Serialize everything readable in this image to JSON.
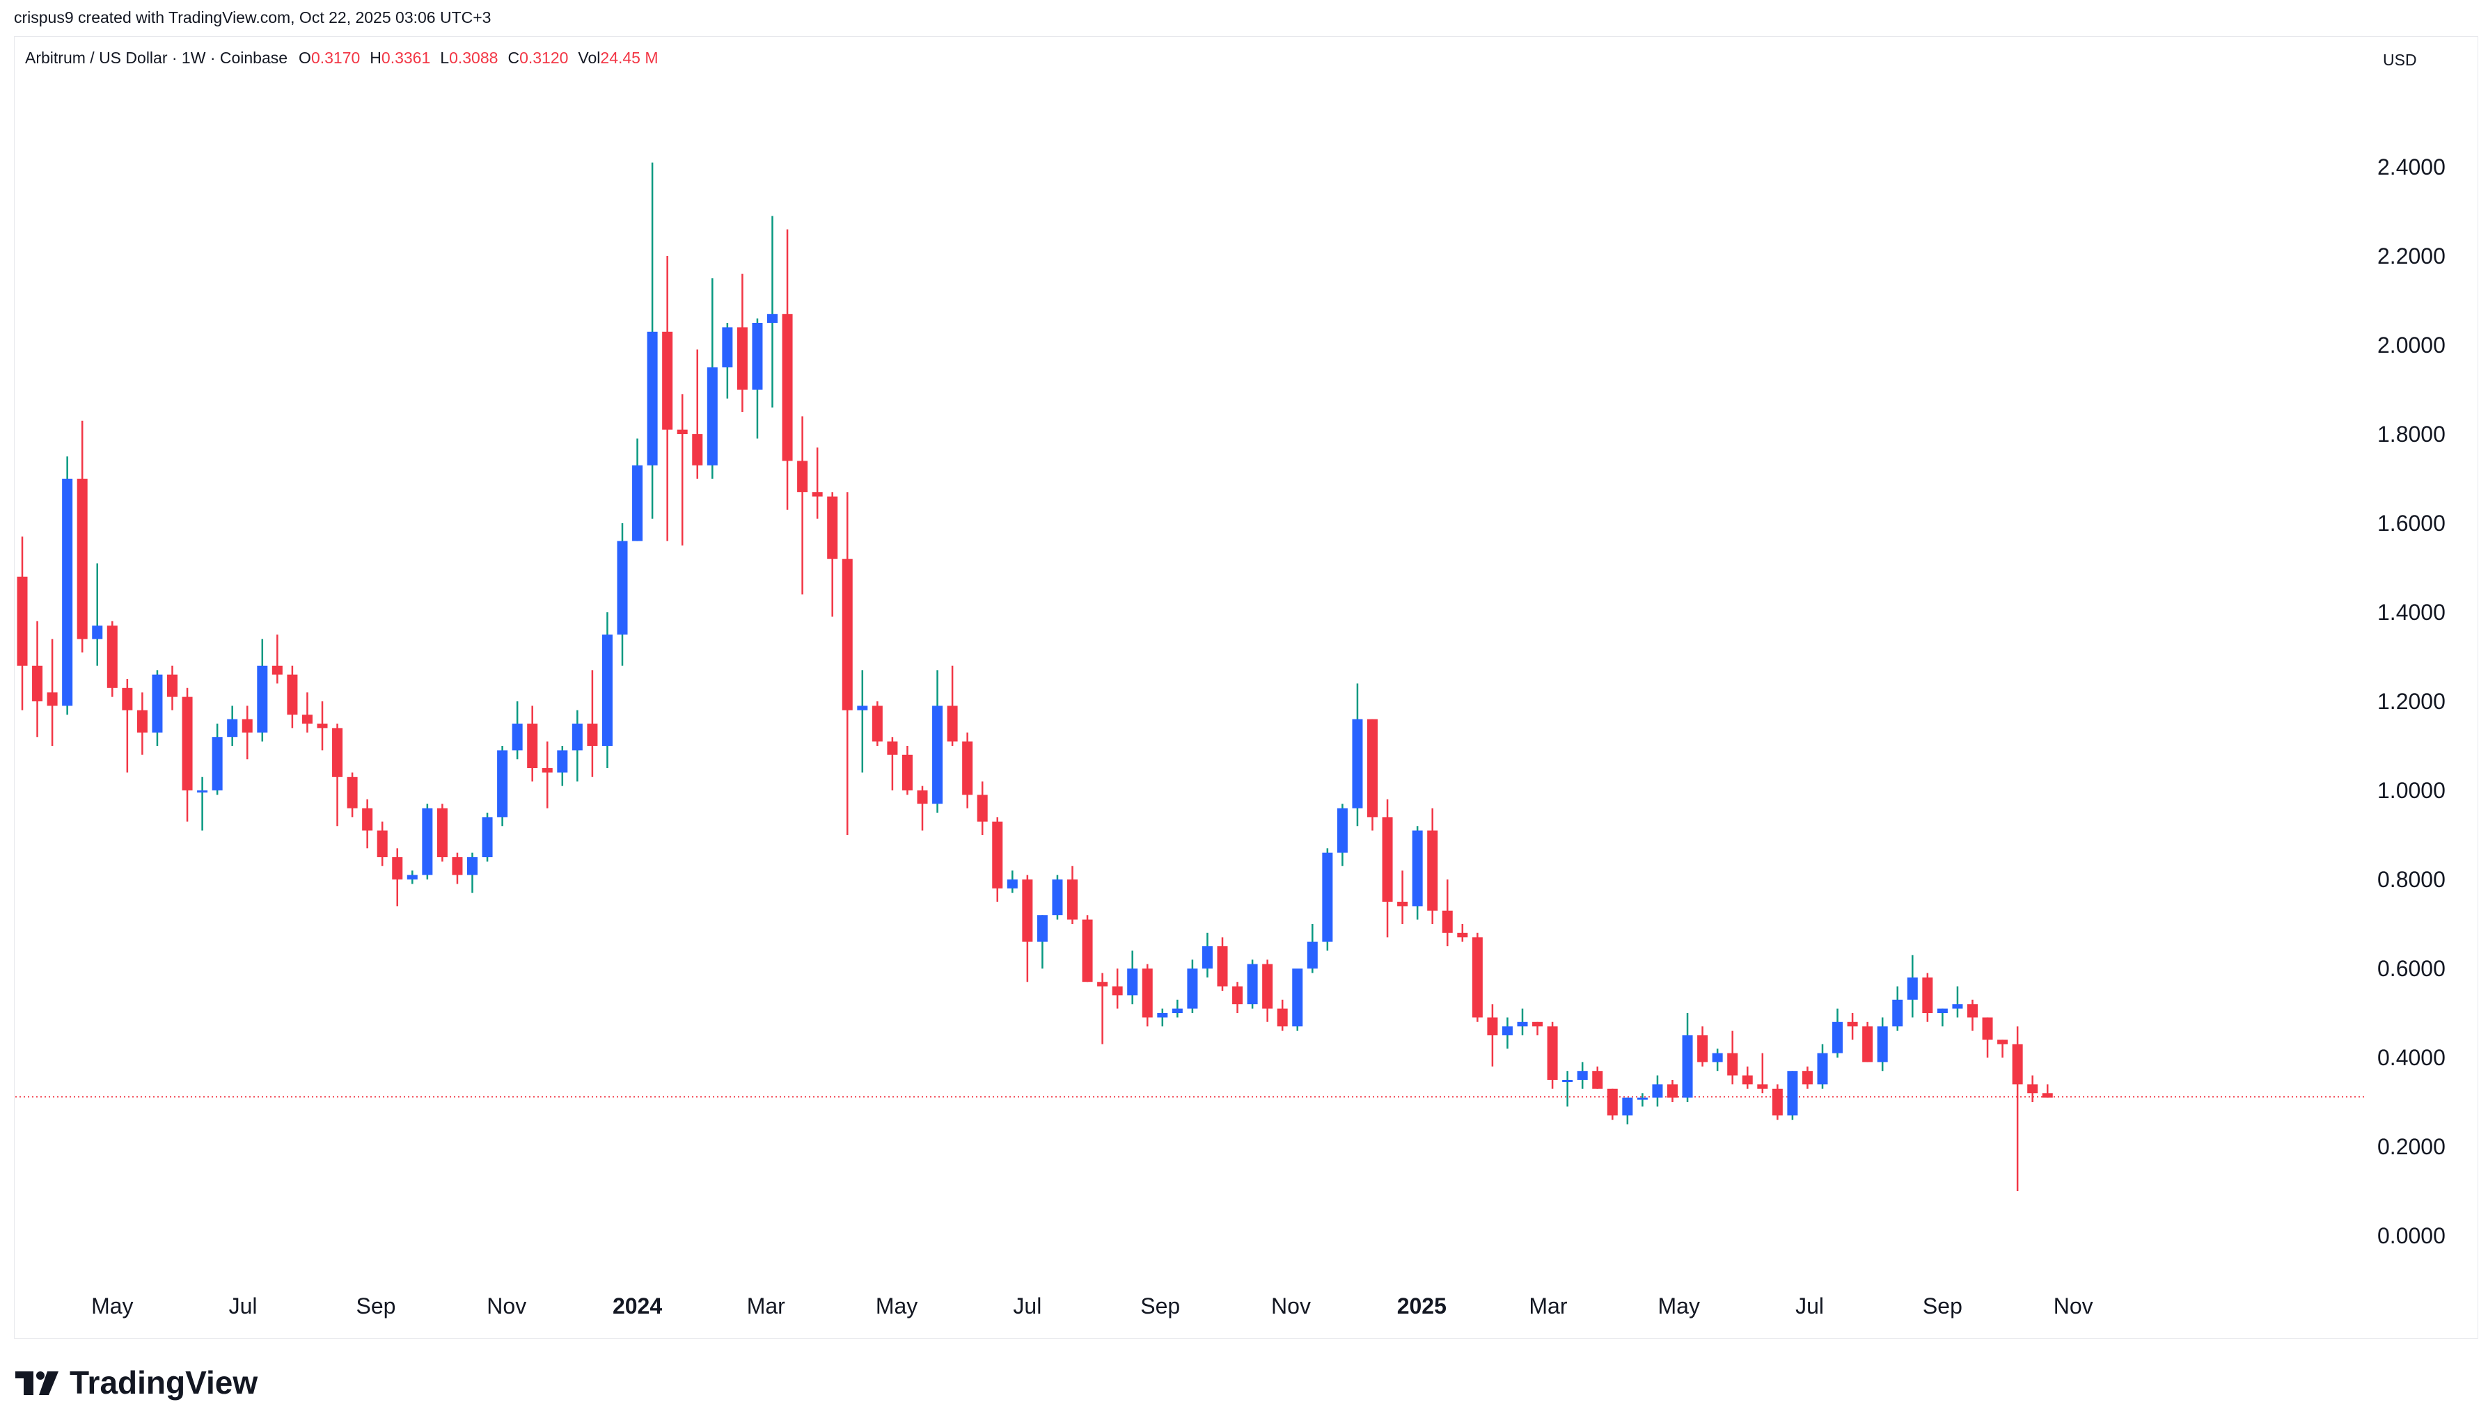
{
  "header": "crispus9 created with TradingView.com, Oct 22, 2025 03:06 UTC+3",
  "legend": {
    "symbol": "Arbitrum / US Dollar · 1W · Coinbase",
    "o_label": "O",
    "o_value": "0.3170",
    "h_label": "H",
    "h_value": "0.3361",
    "l_label": "L",
    "l_value": "0.3088",
    "c_label": "C",
    "c_value": "0.3120",
    "vol_label": "Vol",
    "vol_value": "24.45 M"
  },
  "currency_button": "USD",
  "brand": "TradingView",
  "colors": {
    "up": "#2962ff",
    "down": "#f23645",
    "up_wick": "#089981",
    "price_line": "#f23645"
  },
  "chart_data": {
    "type": "candlestick",
    "title": "Arbitrum / US Dollar · 1W · Coinbase",
    "ylim": [
      -0.1,
      2.55
    ],
    "y_ticks": [
      "0.0000",
      "0.2000",
      "0.4000",
      "0.6000",
      "0.8000",
      "1.0000",
      "1.2000",
      "1.4000",
      "1.6000",
      "1.8000",
      "2.0000",
      "2.2000",
      "2.4000"
    ],
    "x_ticks": [
      {
        "label": "May",
        "date": "2023-05-01"
      },
      {
        "label": "Jul",
        "date": "2023-07-01"
      },
      {
        "label": "Sep",
        "date": "2023-09-01"
      },
      {
        "label": "Nov",
        "date": "2023-11-01"
      },
      {
        "label": "2024",
        "date": "2024-01-01",
        "bold": true
      },
      {
        "label": "Mar",
        "date": "2024-03-01"
      },
      {
        "label": "May",
        "date": "2024-05-01"
      },
      {
        "label": "Jul",
        "date": "2024-07-01"
      },
      {
        "label": "Sep",
        "date": "2024-09-01"
      },
      {
        "label": "Nov",
        "date": "2024-11-01"
      },
      {
        "label": "2025",
        "date": "2025-01-01",
        "bold": true
      },
      {
        "label": "Mar",
        "date": "2025-03-01"
      },
      {
        "label": "May",
        "date": "2025-05-01"
      },
      {
        "label": "Jul",
        "date": "2025-07-01"
      },
      {
        "label": "Sep",
        "date": "2025-09-01"
      },
      {
        "label": "Nov",
        "date": "2025-11-01"
      }
    ],
    "first_candle_date": "2023-03-20",
    "interval": "1W",
    "last_price": 0.312,
    "ohlc": [
      [
        1.48,
        1.57,
        1.18,
        1.28
      ],
      [
        1.28,
        1.38,
        1.12,
        1.2
      ],
      [
        1.22,
        1.34,
        1.1,
        1.19
      ],
      [
        1.19,
        1.75,
        1.17,
        1.7
      ],
      [
        1.7,
        1.83,
        1.31,
        1.34
      ],
      [
        1.34,
        1.51,
        1.28,
        1.37
      ],
      [
        1.37,
        1.38,
        1.21,
        1.23
      ],
      [
        1.23,
        1.25,
        1.04,
        1.18
      ],
      [
        1.18,
        1.22,
        1.08,
        1.13
      ],
      [
        1.13,
        1.27,
        1.1,
        1.26
      ],
      [
        1.26,
        1.28,
        1.18,
        1.21
      ],
      [
        1.21,
        1.23,
        0.93,
        1.0
      ],
      [
        1.0,
        1.03,
        0.91,
        1.0
      ],
      [
        1.0,
        1.15,
        0.99,
        1.12
      ],
      [
        1.12,
        1.19,
        1.1,
        1.16
      ],
      [
        1.16,
        1.19,
        1.07,
        1.13
      ],
      [
        1.13,
        1.34,
        1.11,
        1.28
      ],
      [
        1.28,
        1.35,
        1.24,
        1.26
      ],
      [
        1.26,
        1.28,
        1.14,
        1.17
      ],
      [
        1.17,
        1.22,
        1.13,
        1.15
      ],
      [
        1.15,
        1.2,
        1.09,
        1.14
      ],
      [
        1.14,
        1.15,
        0.92,
        1.03
      ],
      [
        1.03,
        1.04,
        0.94,
        0.96
      ],
      [
        0.96,
        0.98,
        0.87,
        0.91
      ],
      [
        0.91,
        0.93,
        0.83,
        0.85
      ],
      [
        0.85,
        0.87,
        0.74,
        0.8
      ],
      [
        0.8,
        0.82,
        0.79,
        0.81
      ],
      [
        0.81,
        0.97,
        0.8,
        0.96
      ],
      [
        0.96,
        0.97,
        0.84,
        0.85
      ],
      [
        0.85,
        0.86,
        0.79,
        0.81
      ],
      [
        0.81,
        0.86,
        0.77,
        0.85
      ],
      [
        0.85,
        0.95,
        0.84,
        0.94
      ],
      [
        0.94,
        1.1,
        0.92,
        1.09
      ],
      [
        1.09,
        1.2,
        1.07,
        1.15
      ],
      [
        1.15,
        1.19,
        1.02,
        1.05
      ],
      [
        1.05,
        1.11,
        0.96,
        1.04
      ],
      [
        1.04,
        1.1,
        1.01,
        1.09
      ],
      [
        1.09,
        1.18,
        1.02,
        1.15
      ],
      [
        1.15,
        1.27,
        1.03,
        1.1
      ],
      [
        1.1,
        1.4,
        1.05,
        1.35
      ],
      [
        1.35,
        1.6,
        1.28,
        1.56
      ],
      [
        1.56,
        1.79,
        1.56,
        1.73
      ],
      [
        1.73,
        2.41,
        1.61,
        2.03
      ],
      [
        2.03,
        2.2,
        1.56,
        1.81
      ],
      [
        1.81,
        1.89,
        1.55,
        1.8
      ],
      [
        1.8,
        1.99,
        1.7,
        1.73
      ],
      [
        1.73,
        2.15,
        1.7,
        1.95
      ],
      [
        1.95,
        2.05,
        1.88,
        2.04
      ],
      [
        2.04,
        2.16,
        1.85,
        1.9
      ],
      [
        1.9,
        2.06,
        1.79,
        2.05
      ],
      [
        2.05,
        2.29,
        1.86,
        2.07
      ],
      [
        2.07,
        2.26,
        1.63,
        1.74
      ],
      [
        1.74,
        1.84,
        1.44,
        1.67
      ],
      [
        1.67,
        1.77,
        1.61,
        1.66
      ],
      [
        1.66,
        1.67,
        1.39,
        1.52
      ],
      [
        1.52,
        1.67,
        0.9,
        1.18
      ],
      [
        1.18,
        1.27,
        1.04,
        1.19
      ],
      [
        1.19,
        1.2,
        1.1,
        1.11
      ],
      [
        1.11,
        1.12,
        1.0,
        1.08
      ],
      [
        1.08,
        1.1,
        0.99,
        1.0
      ],
      [
        1.0,
        1.01,
        0.91,
        0.97
      ],
      [
        0.97,
        1.27,
        0.95,
        1.19
      ],
      [
        1.19,
        1.28,
        1.1,
        1.11
      ],
      [
        1.11,
        1.13,
        0.96,
        0.99
      ],
      [
        0.99,
        1.02,
        0.9,
        0.93
      ],
      [
        0.93,
        0.94,
        0.75,
        0.78
      ],
      [
        0.78,
        0.82,
        0.77,
        0.8
      ],
      [
        0.8,
        0.81,
        0.57,
        0.66
      ],
      [
        0.66,
        0.72,
        0.6,
        0.72
      ],
      [
        0.72,
        0.81,
        0.71,
        0.8
      ],
      [
        0.8,
        0.83,
        0.7,
        0.71
      ],
      [
        0.71,
        0.72,
        0.57,
        0.57
      ],
      [
        0.57,
        0.59,
        0.43,
        0.56
      ],
      [
        0.56,
        0.6,
        0.51,
        0.54
      ],
      [
        0.54,
        0.64,
        0.52,
        0.6
      ],
      [
        0.6,
        0.61,
        0.47,
        0.49
      ],
      [
        0.49,
        0.51,
        0.47,
        0.5
      ],
      [
        0.5,
        0.53,
        0.49,
        0.51
      ],
      [
        0.51,
        0.62,
        0.5,
        0.6
      ],
      [
        0.6,
        0.68,
        0.58,
        0.65
      ],
      [
        0.65,
        0.67,
        0.55,
        0.56
      ],
      [
        0.56,
        0.57,
        0.5,
        0.52
      ],
      [
        0.52,
        0.62,
        0.51,
        0.61
      ],
      [
        0.61,
        0.62,
        0.48,
        0.51
      ],
      [
        0.51,
        0.53,
        0.46,
        0.47
      ],
      [
        0.47,
        0.6,
        0.46,
        0.6
      ],
      [
        0.6,
        0.7,
        0.59,
        0.66
      ],
      [
        0.66,
        0.87,
        0.64,
        0.86
      ],
      [
        0.86,
        0.97,
        0.83,
        0.96
      ],
      [
        0.96,
        1.24,
        0.92,
        1.16
      ],
      [
        1.16,
        1.16,
        0.91,
        0.94
      ],
      [
        0.94,
        0.98,
        0.67,
        0.75
      ],
      [
        0.75,
        0.82,
        0.7,
        0.74
      ],
      [
        0.74,
        0.92,
        0.71,
        0.91
      ],
      [
        0.91,
        0.96,
        0.7,
        0.73
      ],
      [
        0.73,
        0.8,
        0.65,
        0.68
      ],
      [
        0.68,
        0.7,
        0.66,
        0.67
      ],
      [
        0.67,
        0.68,
        0.48,
        0.49
      ],
      [
        0.49,
        0.52,
        0.38,
        0.45
      ],
      [
        0.45,
        0.49,
        0.42,
        0.47
      ],
      [
        0.47,
        0.51,
        0.45,
        0.48
      ],
      [
        0.48,
        0.48,
        0.45,
        0.47
      ],
      [
        0.47,
        0.48,
        0.33,
        0.35
      ],
      [
        0.35,
        0.37,
        0.29,
        0.35
      ],
      [
        0.35,
        0.39,
        0.33,
        0.37
      ],
      [
        0.37,
        0.38,
        0.33,
        0.33
      ],
      [
        0.33,
        0.33,
        0.26,
        0.27
      ],
      [
        0.27,
        0.31,
        0.25,
        0.31
      ],
      [
        0.31,
        0.32,
        0.29,
        0.31
      ],
      [
        0.31,
        0.36,
        0.29,
        0.34
      ],
      [
        0.34,
        0.35,
        0.3,
        0.31
      ],
      [
        0.31,
        0.5,
        0.3,
        0.45
      ],
      [
        0.45,
        0.47,
        0.38,
        0.39
      ],
      [
        0.39,
        0.42,
        0.37,
        0.41
      ],
      [
        0.41,
        0.46,
        0.34,
        0.36
      ],
      [
        0.36,
        0.38,
        0.33,
        0.34
      ],
      [
        0.34,
        0.41,
        0.32,
        0.33
      ],
      [
        0.33,
        0.34,
        0.26,
        0.27
      ],
      [
        0.27,
        0.37,
        0.26,
        0.37
      ],
      [
        0.37,
        0.38,
        0.33,
        0.34
      ],
      [
        0.34,
        0.43,
        0.33,
        0.41
      ],
      [
        0.41,
        0.51,
        0.4,
        0.48
      ],
      [
        0.48,
        0.5,
        0.44,
        0.47
      ],
      [
        0.47,
        0.48,
        0.39,
        0.39
      ],
      [
        0.39,
        0.49,
        0.37,
        0.47
      ],
      [
        0.47,
        0.56,
        0.46,
        0.53
      ],
      [
        0.53,
        0.63,
        0.49,
        0.58
      ],
      [
        0.58,
        0.59,
        0.48,
        0.5
      ],
      [
        0.5,
        0.51,
        0.47,
        0.51
      ],
      [
        0.51,
        0.56,
        0.49,
        0.52
      ],
      [
        0.52,
        0.53,
        0.46,
        0.49
      ],
      [
        0.49,
        0.49,
        0.4,
        0.44
      ],
      [
        0.44,
        0.44,
        0.4,
        0.43
      ],
      [
        0.43,
        0.47,
        0.1,
        0.34
      ],
      [
        0.34,
        0.36,
        0.3,
        0.32
      ],
      [
        0.32,
        0.34,
        0.31,
        0.31
      ]
    ]
  }
}
